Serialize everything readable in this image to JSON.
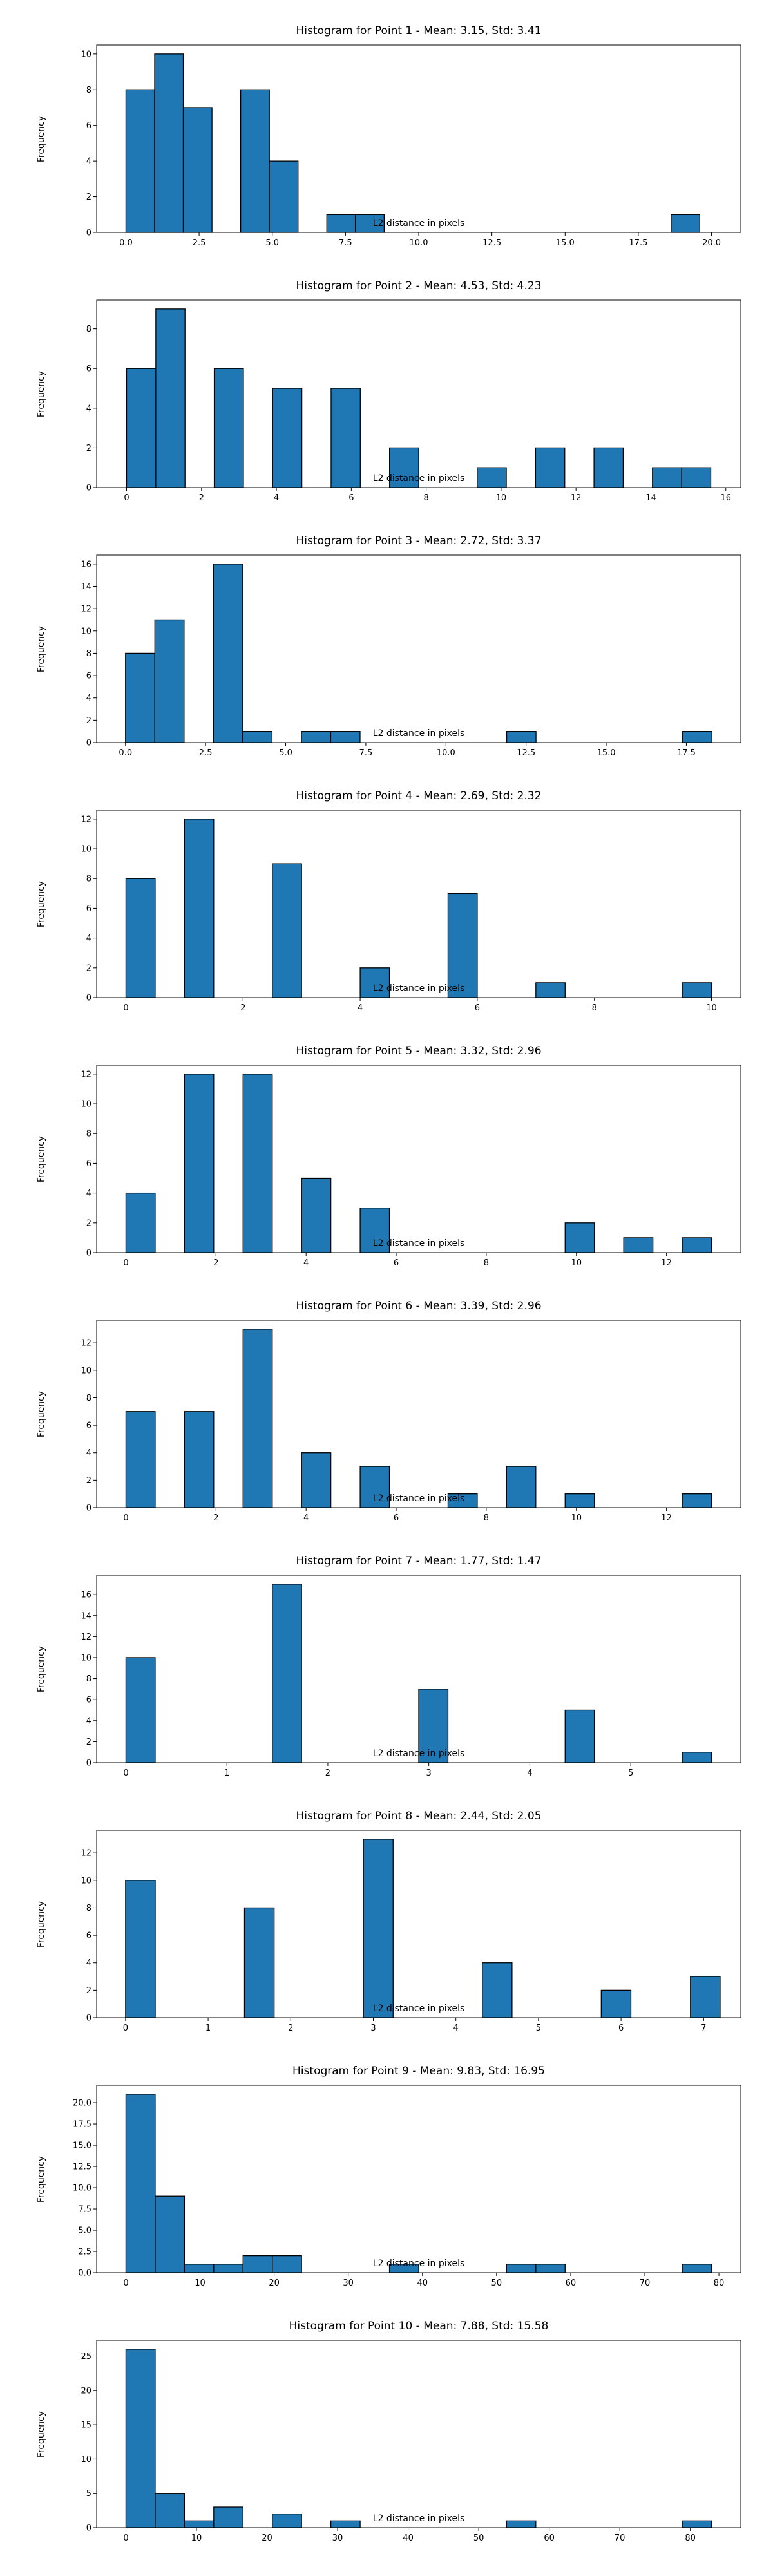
{
  "chart_data": [
    {
      "type": "bar",
      "title": "Histogram for Point 1 - Mean: 3.15, Std: 3.41",
      "xlabel": "L2 distance in pixels",
      "ylabel": "Frequency",
      "bin_width": 0.98,
      "xlim": [
        -1,
        21
      ],
      "ylim": [
        0,
        10.5
      ],
      "xticks": [
        0.0,
        2.5,
        5.0,
        7.5,
        10.0,
        12.5,
        15.0,
        17.5,
        20.0
      ],
      "xtick_labels": [
        "0.0",
        "2.5",
        "5.0",
        "7.5",
        "10.0",
        "12.5",
        "15.0",
        "17.5",
        "20.0"
      ],
      "yticks": [
        0,
        2,
        4,
        6,
        8,
        10
      ],
      "bins": [
        {
          "x0": 0.0,
          "count": 8
        },
        {
          "x0": 0.98,
          "count": 10
        },
        {
          "x0": 1.96,
          "count": 7
        },
        {
          "x0": 3.92,
          "count": 8
        },
        {
          "x0": 4.9,
          "count": 4
        },
        {
          "x0": 6.86,
          "count": 1
        },
        {
          "x0": 7.84,
          "count": 1
        },
        {
          "x0": 18.62,
          "count": 1
        }
      ],
      "grid": false,
      "bar_color": "#1f77b4"
    },
    {
      "type": "bar",
      "title": "Histogram for Point 2 - Mean: 4.53, Std: 4.23",
      "xlabel": "L2 distance in pixels",
      "ylabel": "Frequency",
      "bin_width": 0.78,
      "xlim": [
        -0.8,
        16.4
      ],
      "ylim": [
        0,
        9.45
      ],
      "xticks": [
        0,
        2,
        4,
        6,
        8,
        10,
        12,
        14,
        16
      ],
      "xtick_labels": [
        "0",
        "2",
        "4",
        "6",
        "8",
        "10",
        "12",
        "14",
        "16"
      ],
      "yticks": [
        0,
        2,
        4,
        6,
        8
      ],
      "bins": [
        {
          "x0": 0.0,
          "count": 6
        },
        {
          "x0": 0.78,
          "count": 9
        },
        {
          "x0": 2.34,
          "count": 6
        },
        {
          "x0": 3.9,
          "count": 5
        },
        {
          "x0": 5.46,
          "count": 5
        },
        {
          "x0": 7.02,
          "count": 2
        },
        {
          "x0": 9.36,
          "count": 1
        },
        {
          "x0": 10.92,
          "count": 2
        },
        {
          "x0": 12.48,
          "count": 2
        },
        {
          "x0": 14.04,
          "count": 1
        },
        {
          "x0": 14.82,
          "count": 1
        }
      ],
      "grid": false,
      "bar_color": "#1f77b4"
    },
    {
      "type": "bar",
      "title": "Histogram for Point 3 - Mean: 2.72, Std: 3.37",
      "xlabel": "L2 distance in pixels",
      "ylabel": "Frequency",
      "bin_width": 0.915,
      "xlim": [
        -0.9,
        19.2
      ],
      "ylim": [
        0,
        16.8
      ],
      "xticks": [
        0.0,
        2.5,
        5.0,
        7.5,
        10.0,
        12.5,
        15.0,
        17.5
      ],
      "xtick_labels": [
        "0.0",
        "2.5",
        "5.0",
        "7.5",
        "10.0",
        "12.5",
        "15.0",
        "17.5"
      ],
      "yticks": [
        0,
        2,
        4,
        6,
        8,
        10,
        12,
        14,
        16
      ],
      "bins": [
        {
          "x0": 0.0,
          "count": 8
        },
        {
          "x0": 0.915,
          "count": 11
        },
        {
          "x0": 2.745,
          "count": 16
        },
        {
          "x0": 3.66,
          "count": 1
        },
        {
          "x0": 5.49,
          "count": 1
        },
        {
          "x0": 6.405,
          "count": 1
        },
        {
          "x0": 11.895,
          "count": 1
        },
        {
          "x0": 17.385,
          "count": 1
        }
      ],
      "grid": false,
      "bar_color": "#1f77b4"
    },
    {
      "type": "bar",
      "title": "Histogram for Point 4 - Mean: 2.69, Std: 2.32",
      "xlabel": "L2 distance in pixels",
      "ylabel": "Frequency",
      "bin_width": 0.5,
      "xlim": [
        -0.5,
        10.5
      ],
      "ylim": [
        0,
        12.6
      ],
      "xticks": [
        0,
        2,
        4,
        6,
        8,
        10
      ],
      "xtick_labels": [
        "0",
        "2",
        "4",
        "6",
        "8",
        "10"
      ],
      "yticks": [
        0,
        2,
        4,
        6,
        8,
        10,
        12
      ],
      "bins": [
        {
          "x0": 0.0,
          "count": 8
        },
        {
          "x0": 1.0,
          "count": 12
        },
        {
          "x0": 2.5,
          "count": 9
        },
        {
          "x0": 4.0,
          "count": 2
        },
        {
          "x0": 5.5,
          "count": 7
        },
        {
          "x0": 7.0,
          "count": 1
        },
        {
          "x0": 9.5,
          "count": 1
        }
      ],
      "grid": false,
      "bar_color": "#1f77b4"
    },
    {
      "type": "bar",
      "title": "Histogram for Point 5 - Mean: 3.32, Std: 2.96",
      "xlabel": "L2 distance in pixels",
      "ylabel": "Frequency",
      "bin_width": 0.65,
      "xlim": [
        -0.65,
        13.65
      ],
      "ylim": [
        0,
        12.6
      ],
      "xticks": [
        0,
        2,
        4,
        6,
        8,
        10,
        12
      ],
      "xtick_labels": [
        "0",
        "2",
        "4",
        "6",
        "8",
        "10",
        "12"
      ],
      "yticks": [
        0,
        2,
        4,
        6,
        8,
        10,
        12
      ],
      "bins": [
        {
          "x0": 0.0,
          "count": 4
        },
        {
          "x0": 1.3,
          "count": 12
        },
        {
          "x0": 2.6,
          "count": 12
        },
        {
          "x0": 3.9,
          "count": 5
        },
        {
          "x0": 5.2,
          "count": 3
        },
        {
          "x0": 9.75,
          "count": 2
        },
        {
          "x0": 11.05,
          "count": 1
        },
        {
          "x0": 12.35,
          "count": 1
        }
      ],
      "grid": false,
      "bar_color": "#1f77b4"
    },
    {
      "type": "bar",
      "title": "Histogram for Point 6 - Mean: 3.39, Std: 2.96",
      "xlabel": "L2 distance in pixels",
      "ylabel": "Frequency",
      "bin_width": 0.65,
      "xlim": [
        -0.65,
        13.65
      ],
      "ylim": [
        0,
        13.65
      ],
      "xticks": [
        0,
        2,
        4,
        6,
        8,
        10,
        12
      ],
      "xtick_labels": [
        "0",
        "2",
        "4",
        "6",
        "8",
        "10",
        "12"
      ],
      "yticks": [
        0,
        2,
        4,
        6,
        8,
        10,
        12
      ],
      "bins": [
        {
          "x0": 0.0,
          "count": 7
        },
        {
          "x0": 1.3,
          "count": 7
        },
        {
          "x0": 2.6,
          "count": 13
        },
        {
          "x0": 3.9,
          "count": 4
        },
        {
          "x0": 5.2,
          "count": 3
        },
        {
          "x0": 7.15,
          "count": 1
        },
        {
          "x0": 8.45,
          "count": 3
        },
        {
          "x0": 9.75,
          "count": 1
        },
        {
          "x0": 12.35,
          "count": 1
        }
      ],
      "grid": false,
      "bar_color": "#1f77b4"
    },
    {
      "type": "bar",
      "title": "Histogram for Point 7 - Mean: 1.77, Std: 1.47",
      "xlabel": "L2 distance in pixels",
      "ylabel": "Frequency",
      "bin_width": 0.29,
      "xlim": [
        -0.29,
        6.09
      ],
      "ylim": [
        0,
        17.85
      ],
      "xticks": [
        0,
        1,
        2,
        3,
        4,
        5
      ],
      "xtick_labels": [
        "0",
        "1",
        "2",
        "3",
        "4",
        "5"
      ],
      "yticks": [
        0,
        2,
        4,
        6,
        8,
        10,
        12,
        14,
        16
      ],
      "bins": [
        {
          "x0": 0.0,
          "count": 10
        },
        {
          "x0": 1.45,
          "count": 17
        },
        {
          "x0": 2.9,
          "count": 7
        },
        {
          "x0": 4.35,
          "count": 5
        },
        {
          "x0": 5.51,
          "count": 1
        }
      ],
      "grid": false,
      "bar_color": "#1f77b4"
    },
    {
      "type": "bar",
      "title": "Histogram for Point 8 - Mean: 2.44, Std: 2.05",
      "xlabel": "L2 distance in pixels",
      "ylabel": "Frequency",
      "bin_width": 0.36,
      "xlim": [
        -0.35,
        7.45
      ],
      "ylim": [
        0,
        13.65
      ],
      "xticks": [
        0,
        1,
        2,
        3,
        4,
        5,
        6,
        7
      ],
      "xtick_labels": [
        "0",
        "1",
        "2",
        "3",
        "4",
        "5",
        "6",
        "7"
      ],
      "yticks": [
        0,
        2,
        4,
        6,
        8,
        10,
        12
      ],
      "bins": [
        {
          "x0": 0.0,
          "count": 10
        },
        {
          "x0": 1.44,
          "count": 8
        },
        {
          "x0": 2.88,
          "count": 13
        },
        {
          "x0": 4.32,
          "count": 4
        },
        {
          "x0": 5.76,
          "count": 2
        },
        {
          "x0": 6.84,
          "count": 3
        }
      ],
      "grid": false,
      "bar_color": "#1f77b4"
    },
    {
      "type": "bar",
      "title": "Histogram for Point 9 - Mean: 9.83, Std: 16.95",
      "xlabel": "L2 distance in pixels",
      "ylabel": "Frequency",
      "bin_width": 3.95,
      "xlim": [
        -3.95,
        82.95
      ],
      "ylim": [
        0,
        22.05
      ],
      "xticks": [
        0,
        10,
        20,
        30,
        40,
        50,
        60,
        70,
        80
      ],
      "xtick_labels": [
        "0",
        "10",
        "20",
        "30",
        "40",
        "50",
        "60",
        "70",
        "80"
      ],
      "yticks": [
        0.0,
        2.5,
        5.0,
        7.5,
        10.0,
        12.5,
        15.0,
        17.5,
        20.0
      ],
      "ytick_labels": [
        "0.0",
        "2.5",
        "5.0",
        "7.5",
        "10.0",
        "12.5",
        "15.0",
        "17.5",
        "20.0"
      ],
      "bins": [
        {
          "x0": 0.0,
          "count": 21
        },
        {
          "x0": 3.95,
          "count": 9
        },
        {
          "x0": 7.9,
          "count": 1
        },
        {
          "x0": 11.85,
          "count": 1
        },
        {
          "x0": 15.8,
          "count": 2
        },
        {
          "x0": 19.75,
          "count": 2
        },
        {
          "x0": 35.55,
          "count": 1
        },
        {
          "x0": 51.35,
          "count": 1
        },
        {
          "x0": 55.3,
          "count": 1
        },
        {
          "x0": 75.05,
          "count": 1
        }
      ],
      "grid": false,
      "bar_color": "#1f77b4"
    },
    {
      "type": "bar",
      "title": "Histogram for Point 10 - Mean: 7.88, Std: 15.58",
      "xlabel": "L2 distance in pixels",
      "ylabel": "Frequency",
      "bin_width": 4.15,
      "xlim": [
        -4.15,
        87.15
      ],
      "ylim": [
        0,
        27.3
      ],
      "xticks": [
        0,
        10,
        20,
        30,
        40,
        50,
        60,
        70,
        80
      ],
      "xtick_labels": [
        "0",
        "10",
        "20",
        "30",
        "40",
        "50",
        "60",
        "70",
        "80"
      ],
      "yticks": [
        0,
        5,
        10,
        15,
        20,
        25
      ],
      "bins": [
        {
          "x0": 0.0,
          "count": 26
        },
        {
          "x0": 4.15,
          "count": 5
        },
        {
          "x0": 8.3,
          "count": 1
        },
        {
          "x0": 12.45,
          "count": 3
        },
        {
          "x0": 20.75,
          "count": 2
        },
        {
          "x0": 29.05,
          "count": 1
        },
        {
          "x0": 53.95,
          "count": 1
        },
        {
          "x0": 78.85,
          "count": 1
        }
      ],
      "grid": false,
      "bar_color": "#1f77b4"
    }
  ]
}
